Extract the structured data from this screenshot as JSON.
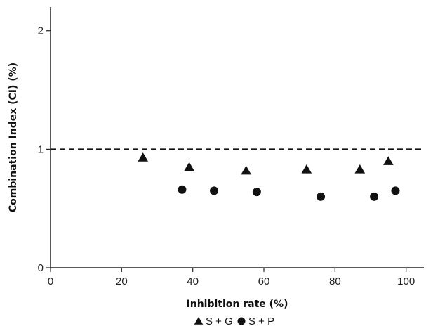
{
  "chart_data": {
    "type": "scatter",
    "title": "",
    "xlabel": "Inhibition rate (%)",
    "ylabel": "Combination Index (CI) (%)",
    "xlim": [
      0,
      105
    ],
    "ylim": [
      0,
      2.2
    ],
    "xticks": [
      0,
      20,
      40,
      60,
      80,
      100
    ],
    "yticks": [
      0,
      1,
      2
    ],
    "reference_line": {
      "y": 1,
      "style": "dashed"
    },
    "grid": false,
    "legend_position": "bottom-center",
    "series": [
      {
        "name": "S + G",
        "marker": "triangle",
        "color": "#111111",
        "x": [
          26,
          39,
          55,
          72,
          87,
          95
        ],
        "y": [
          0.93,
          0.85,
          0.82,
          0.83,
          0.83,
          0.9
        ]
      },
      {
        "name": "S + P",
        "marker": "circle",
        "color": "#111111",
        "x": [
          37,
          46,
          58,
          76,
          91,
          97
        ],
        "y": [
          0.66,
          0.65,
          0.64,
          0.6,
          0.6,
          0.65
        ]
      }
    ]
  }
}
